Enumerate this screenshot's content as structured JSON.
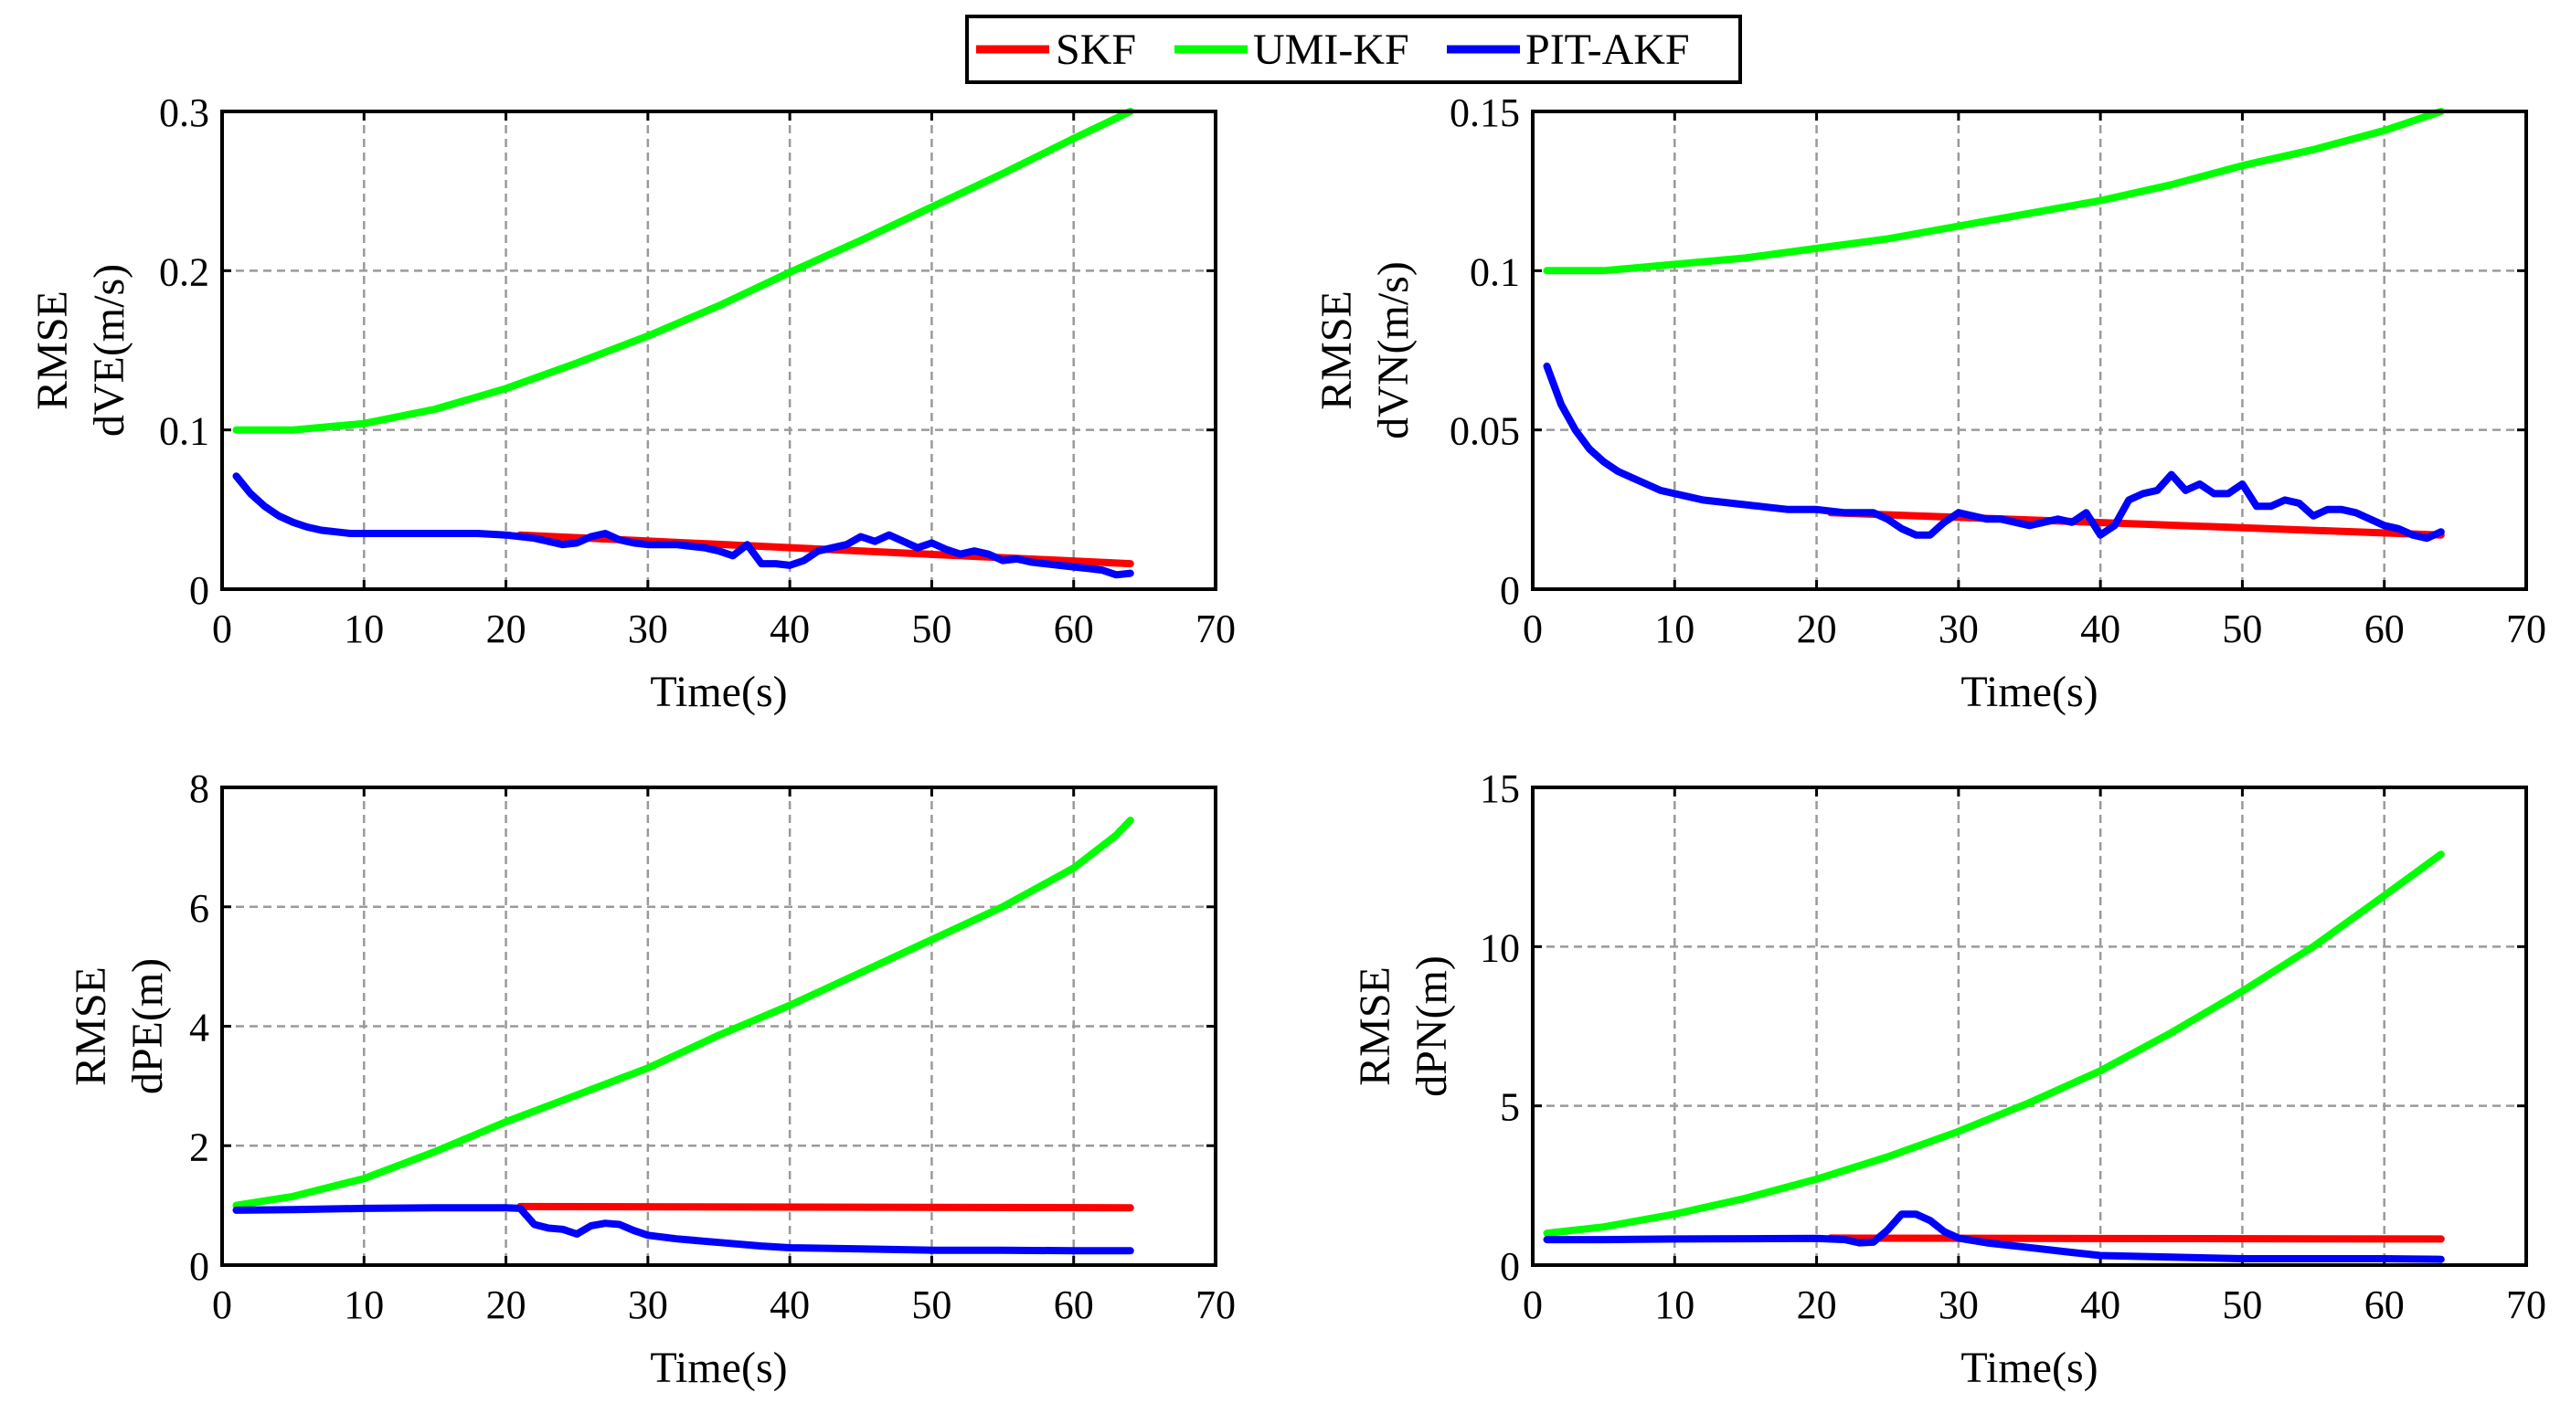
{
  "legend": [
    {
      "label": "SKF",
      "color": "#ff0000"
    },
    {
      "label": "UMI-KF",
      "color": "#00ff00"
    },
    {
      "label": "PIT-AKF",
      "color": "#0000ff"
    }
  ],
  "chart_data": [
    {
      "type": "line",
      "title": "",
      "xlabel": "Time(s)",
      "ylabel": [
        "RMSE",
        "dVE(m/s)"
      ],
      "xlim": [
        0,
        70
      ],
      "ylim": [
        0,
        0.3
      ],
      "xticks": [
        "0",
        "10",
        "20",
        "30",
        "40",
        "50",
        "60",
        "70"
      ],
      "yticks": [
        "0",
        "0.1",
        "0.2",
        "0.3"
      ],
      "grid": true,
      "series": [
        {
          "name": "SKF",
          "color": "#ff0000",
          "x": [
            21,
            64
          ],
          "y": [
            0.034,
            0.016
          ]
        },
        {
          "name": "UMI-KF",
          "color": "#00ff00",
          "x": [
            1,
            5,
            10,
            15,
            20,
            25,
            30,
            35,
            40,
            45,
            50,
            55,
            60,
            64
          ],
          "y": [
            0.1,
            0.1,
            0.104,
            0.113,
            0.126,
            0.142,
            0.159,
            0.178,
            0.199,
            0.219,
            0.24,
            0.261,
            0.283,
            0.3
          ]
        },
        {
          "name": "PIT-AKF",
          "color": "#0000ff",
          "x": [
            1,
            2,
            3,
            4,
            5,
            6,
            7,
            8,
            9,
            10,
            12,
            15,
            18,
            20,
            22,
            23,
            24,
            25,
            26,
            27,
            28,
            29,
            30,
            32,
            34,
            35,
            36,
            37,
            38,
            39,
            40,
            41,
            42,
            43,
            44,
            45,
            46,
            47,
            48,
            49,
            50,
            51,
            52,
            53,
            54,
            55,
            56,
            57,
            58,
            59,
            60,
            61,
            62,
            63,
            64
          ],
          "y": [
            0.071,
            0.06,
            0.052,
            0.046,
            0.042,
            0.039,
            0.037,
            0.036,
            0.035,
            0.035,
            0.035,
            0.035,
            0.035,
            0.034,
            0.032,
            0.03,
            0.028,
            0.029,
            0.033,
            0.035,
            0.031,
            0.029,
            0.028,
            0.028,
            0.026,
            0.024,
            0.021,
            0.028,
            0.016,
            0.016,
            0.015,
            0.018,
            0.024,
            0.026,
            0.028,
            0.033,
            0.03,
            0.034,
            0.03,
            0.026,
            0.029,
            0.025,
            0.022,
            0.024,
            0.022,
            0.018,
            0.019,
            0.017,
            0.016,
            0.015,
            0.014,
            0.013,
            0.012,
            0.009,
            0.01
          ]
        }
      ]
    },
    {
      "type": "line",
      "title": "",
      "xlabel": "Time(s)",
      "ylabel": [
        "RMSE",
        "dVN(m/s)"
      ],
      "xlim": [
        0,
        70
      ],
      "ylim": [
        0,
        0.15
      ],
      "xticks": [
        "0",
        "10",
        "20",
        "30",
        "40",
        "50",
        "60",
        "70"
      ],
      "yticks": [
        "0",
        "0.05",
        "0.1",
        "0.15"
      ],
      "grid": true,
      "series": [
        {
          "name": "SKF",
          "color": "#ff0000",
          "x": [
            21,
            64
          ],
          "y": [
            0.024,
            0.017
          ]
        },
        {
          "name": "UMI-KF",
          "color": "#00ff00",
          "x": [
            1,
            5,
            10,
            15,
            20,
            25,
            30,
            35,
            40,
            45,
            50,
            55,
            60,
            64
          ],
          "y": [
            0.1,
            0.1,
            0.102,
            0.104,
            0.107,
            0.11,
            0.114,
            0.118,
            0.122,
            0.127,
            0.133,
            0.138,
            0.144,
            0.15
          ]
        },
        {
          "name": "PIT-AKF",
          "color": "#0000ff",
          "x": [
            1,
            2,
            3,
            4,
            5,
            6,
            7,
            8,
            9,
            10,
            12,
            14,
            16,
            18,
            20,
            22,
            24,
            25,
            26,
            27,
            28,
            29,
            30,
            31,
            32,
            33,
            34,
            35,
            36,
            37,
            38,
            39,
            40,
            41,
            42,
            43,
            44,
            45,
            46,
            47,
            48,
            49,
            50,
            51,
            52,
            53,
            54,
            55,
            56,
            57,
            58,
            59,
            60,
            61,
            62,
            63,
            64
          ],
          "y": [
            0.07,
            0.058,
            0.05,
            0.044,
            0.04,
            0.037,
            0.035,
            0.033,
            0.031,
            0.03,
            0.028,
            0.027,
            0.026,
            0.025,
            0.025,
            0.024,
            0.024,
            0.022,
            0.019,
            0.017,
            0.017,
            0.021,
            0.024,
            0.023,
            0.022,
            0.022,
            0.021,
            0.02,
            0.021,
            0.022,
            0.021,
            0.024,
            0.017,
            0.02,
            0.028,
            0.03,
            0.031,
            0.036,
            0.031,
            0.033,
            0.03,
            0.03,
            0.033,
            0.026,
            0.026,
            0.028,
            0.027,
            0.023,
            0.025,
            0.025,
            0.024,
            0.022,
            0.02,
            0.019,
            0.017,
            0.016,
            0.018
          ]
        }
      ]
    },
    {
      "type": "line",
      "title": "",
      "xlabel": "Time(s)",
      "ylabel": [
        "RMSE",
        "dPE(m)"
      ],
      "xlim": [
        0,
        70
      ],
      "ylim": [
        0,
        8
      ],
      "xticks": [
        "0",
        "10",
        "20",
        "30",
        "40",
        "50",
        "60",
        "70"
      ],
      "yticks": [
        "0",
        "2",
        "4",
        "6",
        "8"
      ],
      "grid": true,
      "series": [
        {
          "name": "SKF",
          "color": "#ff0000",
          "x": [
            21,
            64
          ],
          "y": [
            0.98,
            0.96
          ]
        },
        {
          "name": "UMI-KF",
          "color": "#00ff00",
          "x": [
            1,
            5,
            10,
            15,
            20,
            25,
            30,
            35,
            40,
            45,
            50,
            55,
            60,
            63,
            64
          ],
          "y": [
            1.0,
            1.15,
            1.45,
            1.9,
            2.4,
            2.85,
            3.3,
            3.85,
            4.35,
            4.9,
            5.45,
            6.0,
            6.65,
            7.2,
            7.45
          ]
        },
        {
          "name": "PIT-AKF",
          "color": "#0000ff",
          "x": [
            1,
            5,
            10,
            15,
            20,
            21,
            22,
            23,
            24,
            25,
            26,
            27,
            28,
            29,
            30,
            32,
            35,
            38,
            40,
            45,
            50,
            55,
            60,
            64
          ],
          "y": [
            0.92,
            0.93,
            0.95,
            0.96,
            0.96,
            0.95,
            0.68,
            0.62,
            0.6,
            0.52,
            0.66,
            0.7,
            0.68,
            0.58,
            0.5,
            0.44,
            0.38,
            0.32,
            0.29,
            0.27,
            0.25,
            0.25,
            0.24,
            0.24
          ]
        }
      ]
    },
    {
      "type": "line",
      "title": "",
      "xlabel": "Time(s)",
      "ylabel": [
        "RMSE",
        "dPN(m)"
      ],
      "xlim": [
        0,
        70
      ],
      "ylim": [
        0,
        15
      ],
      "xticks": [
        "0",
        "10",
        "20",
        "30",
        "40",
        "50",
        "60",
        "70"
      ],
      "yticks": [
        "0",
        "5",
        "10",
        "15"
      ],
      "grid": true,
      "series": [
        {
          "name": "SKF",
          "color": "#ff0000",
          "x": [
            21,
            64
          ],
          "y": [
            0.85,
            0.82
          ]
        },
        {
          "name": "UMI-KF",
          "color": "#00ff00",
          "x": [
            1,
            5,
            10,
            15,
            20,
            25,
            30,
            35,
            40,
            45,
            50,
            55,
            60,
            64
          ],
          "y": [
            1.0,
            1.2,
            1.6,
            2.1,
            2.7,
            3.4,
            4.2,
            5.1,
            6.1,
            7.3,
            8.6,
            10.0,
            11.6,
            12.9
          ]
        },
        {
          "name": "PIT-AKF",
          "color": "#0000ff",
          "x": [
            1,
            5,
            10,
            15,
            20,
            22,
            23,
            24,
            25,
            26,
            27,
            28,
            29,
            30,
            32,
            35,
            38,
            40,
            45,
            50,
            55,
            60,
            64
          ],
          "y": [
            0.8,
            0.8,
            0.82,
            0.83,
            0.84,
            0.8,
            0.7,
            0.72,
            1.1,
            1.6,
            1.6,
            1.4,
            1.05,
            0.85,
            0.7,
            0.55,
            0.4,
            0.3,
            0.25,
            0.2,
            0.2,
            0.2,
            0.18
          ]
        }
      ]
    }
  ]
}
